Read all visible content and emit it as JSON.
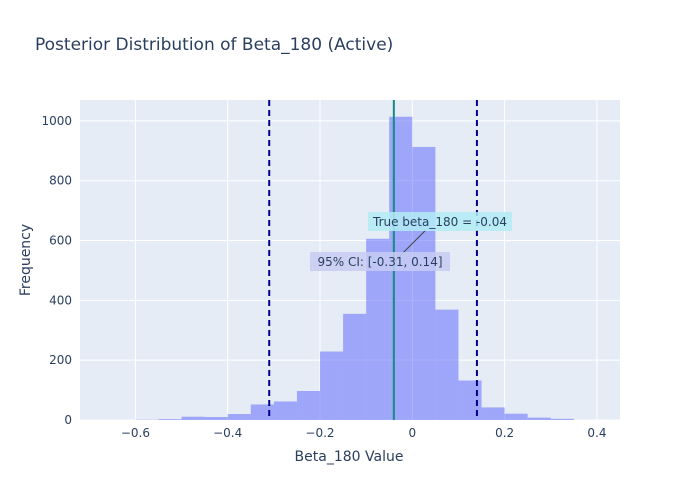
{
  "chart_data": {
    "type": "bar",
    "title": "Posterior Distribution of Beta_180 (Active)",
    "xlabel": "Beta_180 Value",
    "ylabel": "Frequency",
    "xlim": [
      -0.72,
      0.45
    ],
    "ylim": [
      0,
      1070
    ],
    "xticks": [
      -0.6,
      -0.4,
      -0.2,
      0,
      0.2,
      0.4
    ],
    "xtick_labels": [
      "−0.6",
      "−0.4",
      "−0.2",
      "0",
      "0.2",
      "0.4"
    ],
    "yticks": [
      0,
      200,
      400,
      600,
      800,
      1000
    ],
    "ytick_labels": [
      "0",
      "200",
      "400",
      "600",
      "800",
      "1000"
    ],
    "grid": true,
    "bin_width": 0.05,
    "bin_starts": [
      -0.6,
      -0.55,
      -0.5,
      -0.45,
      -0.4,
      -0.35,
      -0.3,
      -0.25,
      -0.2,
      -0.15,
      -0.1,
      -0.05,
      0,
      0.05,
      0.1,
      0.15,
      0.2,
      0.25,
      0.3
    ],
    "values": [
      1,
      3,
      11,
      10,
      20,
      52,
      62,
      97,
      229,
      355,
      606,
      1014,
      913,
      369,
      132,
      42,
      21,
      8,
      4
    ],
    "bar_color": "#636efa",
    "true_value_line": {
      "x": -0.04,
      "color": "#138a86"
    },
    "ci_lines": {
      "lower": -0.31,
      "upper": 0.14,
      "color": "#00008b"
    },
    "annotations": {
      "true_label": "True beta_180 = -0.04",
      "true_bg": "#b3ecf6",
      "ci_label": "95% CI: [-0.31, 0.14]",
      "ci_bg": "#c8cdf3"
    }
  }
}
